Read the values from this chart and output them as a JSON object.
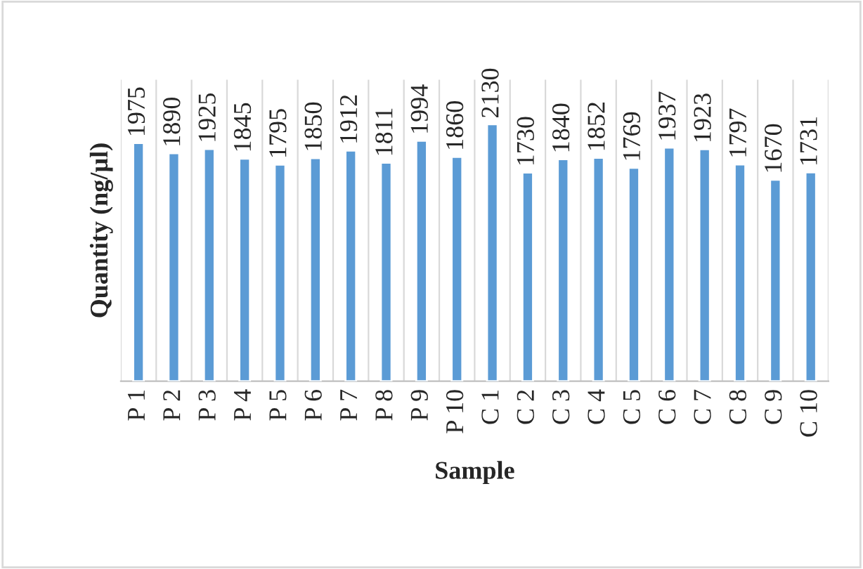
{
  "chart_data": {
    "type": "bar",
    "xlabel": "Sample",
    "ylabel": "Quantity (ng/µl)",
    "categories": [
      "P 1",
      "P 2",
      "P 3",
      "P 4",
      "P 5",
      "P 6",
      "P 7",
      "P 8",
      "P 9",
      "P 10",
      "C 1",
      "C 2",
      "C 3",
      "C 4",
      "C 5",
      "C 6",
      "C 7",
      "C 8",
      "C 9",
      "C 10"
    ],
    "values": [
      1975,
      1890,
      1925,
      1845,
      1795,
      1850,
      1912,
      1811,
      1994,
      1860,
      2130,
      1730,
      1840,
      1852,
      1769,
      1937,
      1923,
      1797,
      1670,
      1731
    ],
    "color": "#5b9bd5",
    "data_labels": true,
    "ylim": [
      0,
      2500
    ],
    "tick_labels": "x",
    "grid": "x"
  }
}
